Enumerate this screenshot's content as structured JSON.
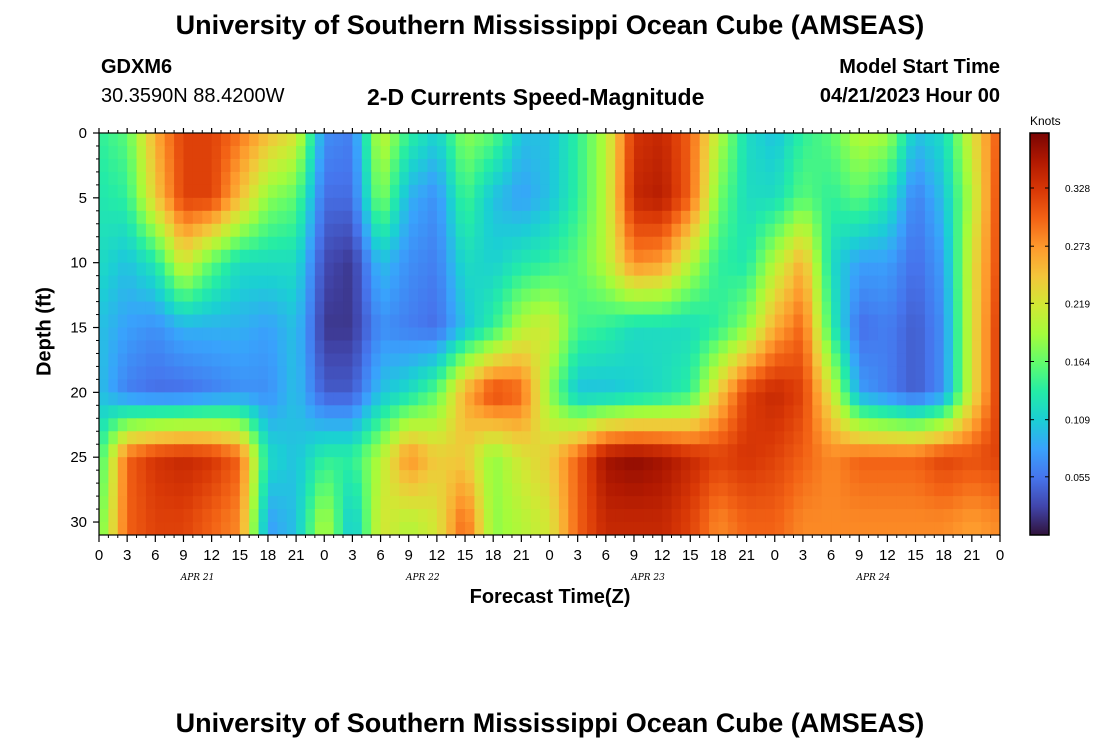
{
  "header": {
    "title": "University of Southern Mississippi Ocean Cube (AMSEAS)",
    "station_id": "GDXM6",
    "station_coords": "30.3590N  88.4200W",
    "subtitle": "2-D Currents Speed-Magnitude",
    "model_start_label": "Model Start Time",
    "model_start_value": "04/21/2023 Hour 00"
  },
  "footer": {
    "title": "University of Southern Mississippi Ocean Cube (AMSEAS)"
  },
  "colors": {
    "scale": [
      "#30123b",
      "#4145ab",
      "#4675ed",
      "#39a2fc",
      "#1bcfd4",
      "#24eca6",
      "#61fc6c",
      "#a4fc3b",
      "#d1e834",
      "#f3c63a",
      "#fe9b2d",
      "#f36315",
      "#d93806",
      "#b11901",
      "#7a0403"
    ]
  },
  "chart_data": {
    "type": "heatmap",
    "title": "2-D Currents Speed-Magnitude",
    "xlabel": "Forecast Time(Z)",
    "ylabel": "Depth (ft)",
    "x_tick_labels": [
      "0",
      "3",
      "6",
      "9",
      "12",
      "15",
      "18",
      "21",
      "0",
      "3",
      "6",
      "9",
      "12",
      "15",
      "18",
      "21",
      "0",
      "3",
      "6",
      "9",
      "12",
      "15",
      "18",
      "21",
      "0",
      "3",
      "6",
      "9",
      "12",
      "15",
      "18",
      "21",
      "0"
    ],
    "date_labels": [
      "APR 21",
      "APR 22",
      "APR 23",
      "APR 24"
    ],
    "y_ticks": [
      0,
      5,
      10,
      15,
      20,
      25,
      30
    ],
    "y_range": [
      0,
      31
    ],
    "x_range_hours": [
      0,
      96
    ],
    "colorbar": {
      "unit": "Knots",
      "ticks": [
        "0.328",
        "0.273",
        "0.219",
        "0.164",
        "0.109",
        "0.055"
      ],
      "range": [
        0,
        0.38
      ]
    },
    "depths_ft": [
      0,
      5,
      10,
      15,
      20,
      25,
      30
    ],
    "hours": [
      0,
      3,
      6,
      9,
      12,
      15,
      18,
      21,
      24,
      27,
      30,
      33,
      36,
      39,
      42,
      45,
      48,
      51,
      54,
      57,
      60,
      63,
      66,
      69,
      72,
      75,
      78,
      81,
      84,
      87,
      90,
      93,
      96
    ],
    "values_knots": [
      [
        0.14,
        0.16,
        0.26,
        0.32,
        0.32,
        0.29,
        0.25,
        0.22,
        0.07,
        0.06,
        0.21,
        0.14,
        0.11,
        0.18,
        0.16,
        0.1,
        0.1,
        0.14,
        0.2,
        0.33,
        0.34,
        0.3,
        0.2,
        0.12,
        0.1,
        0.14,
        0.16,
        0.2,
        0.19,
        0.1,
        0.12,
        0.22,
        0.31
      ],
      [
        0.13,
        0.14,
        0.24,
        0.32,
        0.32,
        0.25,
        0.18,
        0.16,
        0.05,
        0.05,
        0.18,
        0.09,
        0.07,
        0.15,
        0.1,
        0.08,
        0.1,
        0.14,
        0.2,
        0.34,
        0.35,
        0.3,
        0.17,
        0.12,
        0.12,
        0.16,
        0.14,
        0.16,
        0.13,
        0.06,
        0.1,
        0.2,
        0.32
      ],
      [
        0.12,
        0.1,
        0.13,
        0.22,
        0.16,
        0.12,
        0.12,
        0.12,
        0.03,
        0.02,
        0.1,
        0.07,
        0.06,
        0.12,
        0.11,
        0.13,
        0.14,
        0.16,
        0.2,
        0.28,
        0.27,
        0.2,
        0.14,
        0.13,
        0.2,
        0.26,
        0.12,
        0.08,
        0.08,
        0.05,
        0.08,
        0.22,
        0.32
      ],
      [
        0.1,
        0.08,
        0.07,
        0.09,
        0.09,
        0.09,
        0.08,
        0.1,
        0.02,
        0.02,
        0.07,
        0.06,
        0.05,
        0.1,
        0.14,
        0.2,
        0.22,
        0.15,
        0.14,
        0.12,
        0.12,
        0.12,
        0.14,
        0.18,
        0.26,
        0.3,
        0.14,
        0.05,
        0.06,
        0.04,
        0.07,
        0.22,
        0.33
      ],
      [
        0.1,
        0.06,
        0.05,
        0.05,
        0.06,
        0.07,
        0.07,
        0.1,
        0.04,
        0.04,
        0.1,
        0.12,
        0.16,
        0.26,
        0.32,
        0.3,
        0.18,
        0.1,
        0.1,
        0.11,
        0.12,
        0.14,
        0.24,
        0.32,
        0.34,
        0.32,
        0.22,
        0.08,
        0.06,
        0.04,
        0.07,
        0.22,
        0.33
      ],
      [
        0.14,
        0.3,
        0.33,
        0.34,
        0.33,
        0.3,
        0.12,
        0.1,
        0.14,
        0.14,
        0.2,
        0.28,
        0.24,
        0.24,
        0.18,
        0.22,
        0.24,
        0.3,
        0.36,
        0.37,
        0.36,
        0.34,
        0.32,
        0.33,
        0.32,
        0.3,
        0.28,
        0.3,
        0.3,
        0.3,
        0.32,
        0.31,
        0.32
      ],
      [
        0.16,
        0.3,
        0.32,
        0.32,
        0.3,
        0.28,
        0.08,
        0.1,
        0.2,
        0.1,
        0.22,
        0.2,
        0.22,
        0.3,
        0.18,
        0.2,
        0.22,
        0.3,
        0.34,
        0.34,
        0.34,
        0.32,
        0.28,
        0.3,
        0.3,
        0.28,
        0.28,
        0.28,
        0.28,
        0.28,
        0.28,
        0.27,
        0.28
      ]
    ]
  }
}
